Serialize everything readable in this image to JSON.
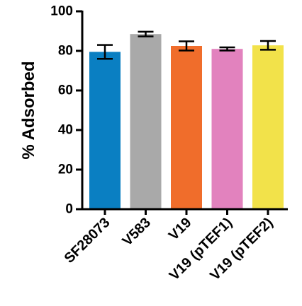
{
  "chart_data": {
    "type": "bar",
    "title": "",
    "xlabel": "",
    "ylabel": "% Adsorbed",
    "ylim": [
      0,
      100
    ],
    "yticks": [
      0,
      20,
      40,
      60,
      80,
      100
    ],
    "grid": false,
    "legend": "none",
    "categories": [
      "SF28073",
      "V583",
      "V19",
      "V19 (pTEF1)",
      "V19 (pTEF2)"
    ],
    "values": [
      79.5,
      88.5,
      82.5,
      81,
      82.8
    ],
    "error": [
      3.5,
      1.2,
      2.3,
      0.8,
      2.2
    ],
    "colors": [
      "#0a7fc2",
      "#a9a9a9",
      "#f06d2b",
      "#e282be",
      "#f2e24a"
    ]
  }
}
